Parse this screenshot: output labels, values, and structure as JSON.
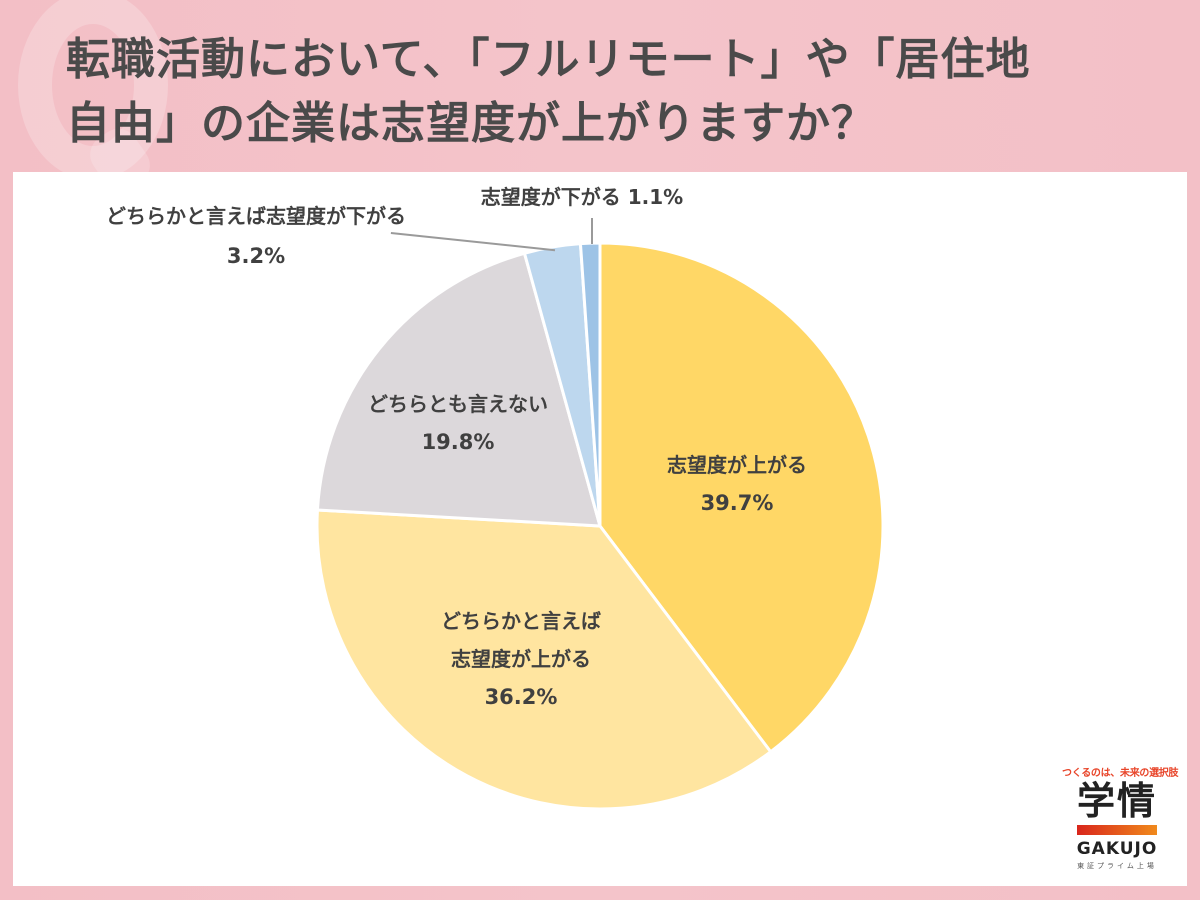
{
  "title": {
    "line1": "転職活動において、「フルリモート」や「居住地",
    "line2": "自由」の企業は志望度が上がりますか？"
  },
  "colors": {
    "background": "#f3c2c8",
    "panel": "#ffffff",
    "title_text": "#4a4a4a",
    "label_text": "#404040"
  },
  "labels": {
    "s0": {
      "line1": "志望度が上がる",
      "pct": "39.7%"
    },
    "s1": {
      "line1": "どちらかと言えば",
      "line2": "志望度が上がる",
      "pct": "36.2%"
    },
    "s2": {
      "line1": "どちらとも言えない",
      "pct": "19.8%"
    },
    "s3": {
      "line1": "どちらかと言えば志望度が下がる",
      "pct": "3.2%"
    },
    "s4": {
      "line1": "志望度が下がる 1.1%"
    }
  },
  "logo": {
    "tagline": "つくるのは、未来の選択肢",
    "kanji": "学情",
    "english": "GAKUJO",
    "sub": "東証プライム上場"
  },
  "chart_data": {
    "type": "pie",
    "title": "転職活動において、「フルリモート」や「居住地自由」の企業は志望度が上がりますか？",
    "start_angle": "12 o'clock, clockwise",
    "categories": [
      "志望度が上がる",
      "どちらかと言えば志望度が上がる",
      "どちらとも言えない",
      "どちらかと言えば志望度が下がる",
      "志望度が下がる"
    ],
    "values": [
      39.7,
      36.2,
      19.8,
      3.2,
      1.1
    ],
    "unit": "%",
    "colors": [
      "#ffd766",
      "#ffe5a0",
      "#dcd8db",
      "#bdd7ee",
      "#9dc3e6"
    ],
    "legend": "none (data labels on/beside slices)"
  }
}
